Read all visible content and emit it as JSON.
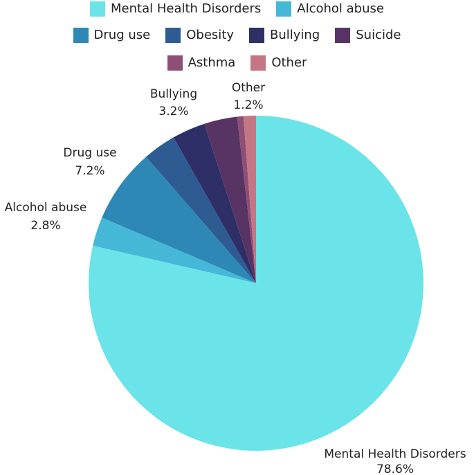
{
  "chart_data": {
    "type": "pie",
    "legend_position": "top",
    "slices": [
      {
        "label": "Mental Health Disorders",
        "value": 78.6,
        "value_label": "78.6%",
        "color": "#6ae4e8"
      },
      {
        "label": "Alcohol abuse",
        "value": 2.8,
        "value_label": "2.8%",
        "color": "#45b8d8"
      },
      {
        "label": "Drug use",
        "value": 7.2,
        "value_label": "7.2%",
        "color": "#2e88b6"
      },
      {
        "label": "Obesity",
        "value": 3.2,
        "value_label": "",
        "color": "#2f5b93"
      },
      {
        "label": "Bullying",
        "value": 3.2,
        "value_label": "3.2%",
        "color": "#2d2f66"
      },
      {
        "label": "Suicide",
        "value": 3.2,
        "value_label": "",
        "color": "#583465"
      },
      {
        "label": "Asthma",
        "value": 0.6,
        "value_label": "",
        "color": "#8e4f77"
      },
      {
        "label": "Other",
        "value": 1.2,
        "value_label": "1.2%",
        "color": "#c47685"
      }
    ]
  }
}
